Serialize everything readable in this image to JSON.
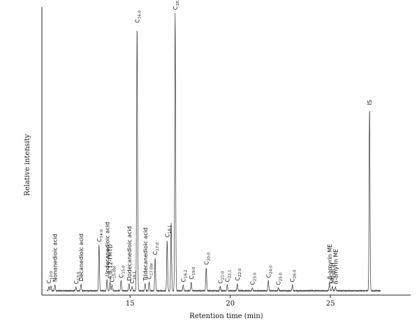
{
  "chart_data": {
    "type": "line",
    "xlabel": "Retention time (min)",
    "ylabel": "Relative intensity",
    "xlim": [
      10.6,
      29.0
    ],
    "ylim": [
      0,
      100
    ],
    "xticks": [
      15,
      20,
      25
    ],
    "grid": false,
    "baseline": 1.5,
    "peaks": [
      {
        "x": 10.95,
        "y": 3.0,
        "label": "C",
        "sub": "12:0"
      },
      {
        "x": 11.05,
        "y": 3.2,
        "label": "",
        "sub": ""
      },
      {
        "x": 11.25,
        "y": 3.6,
        "label": "Nonanedioic acid",
        "sub": ""
      },
      {
        "x": 12.3,
        "y": 2.8,
        "label": "C",
        "sub": "13:0"
      },
      {
        "x": 12.55,
        "y": 3.8,
        "label": "Decanedioic acid",
        "sub": ""
      },
      {
        "x": 13.45,
        "y": 17.5,
        "label": "C",
        "sub": "14:0"
      },
      {
        "x": 13.85,
        "y": 5.5,
        "label": "Undecanedioic acid",
        "sub": ""
      },
      {
        "x": 14.0,
        "y": 4.5,
        "label": "4,8,12-TMTD",
        "sub": ""
      },
      {
        "x": 14.1,
        "y": 3.5,
        "label": "C",
        "sub": "15:0br"
      },
      {
        "x": 14.55,
        "y": 5.0,
        "label": "C",
        "sub": "15:0"
      },
      {
        "x": 14.95,
        "y": 4.0,
        "label": "Dodecanedioic acid",
        "sub": ""
      },
      {
        "x": 15.1,
        "y": 3.0,
        "label": "C",
        "sub": "16:1"
      },
      {
        "x": 15.35,
        "y": 93.5,
        "label": "C",
        "sub": "16:0"
      },
      {
        "x": 15.75,
        "y": 4.0,
        "label": "Tridecanedioic acid",
        "sub": ""
      },
      {
        "x": 15.95,
        "y": 4.5,
        "label": "C",
        "sub": "17:0br"
      },
      {
        "x": 16.25,
        "y": 13.0,
        "label": "C",
        "sub": "17:0"
      },
      {
        "x": 16.85,
        "y": 19.0,
        "label": "C",
        "sub": "18:1"
      },
      {
        "x": 17.05,
        "y": 25.0,
        "label": "",
        "sub": ""
      },
      {
        "x": 17.25,
        "y": 98.0,
        "label": "C",
        "sub": "18:0"
      },
      {
        "x": 17.65,
        "y": 3.5,
        "label": "C",
        "sub": "18:2"
      },
      {
        "x": 18.05,
        "y": 4.5,
        "label": "C",
        "sub": "19:0"
      },
      {
        "x": 18.8,
        "y": 9.5,
        "label": "C",
        "sub": "20:0"
      },
      {
        "x": 19.5,
        "y": 3.0,
        "label": "C",
        "sub": "21:0"
      },
      {
        "x": 19.85,
        "y": 3.5,
        "label": "C",
        "sub": "22:1"
      },
      {
        "x": 20.35,
        "y": 4.0,
        "label": "C",
        "sub": "22:0"
      },
      {
        "x": 21.1,
        "y": 2.5,
        "label": "C",
        "sub": "23:0"
      },
      {
        "x": 21.9,
        "y": 5.0,
        "label": "C",
        "sub": "24:0"
      },
      {
        "x": 22.4,
        "y": 2.5,
        "label": "C",
        "sub": "25:0"
      },
      {
        "x": 23.1,
        "y": 3.5,
        "label": "C",
        "sub": "26:0"
      },
      {
        "x": 24.95,
        "y": 4.5,
        "label": "β-amyrin ME",
        "sub": ""
      },
      {
        "x": 25.1,
        "y": 3.0,
        "label": "Miliacin",
        "sub": ""
      },
      {
        "x": 25.25,
        "y": 2.8,
        "label": "α-amyrin ME",
        "sub": ""
      },
      {
        "x": 26.95,
        "y": 65.0,
        "label": "IS",
        "sub": ""
      }
    ]
  }
}
